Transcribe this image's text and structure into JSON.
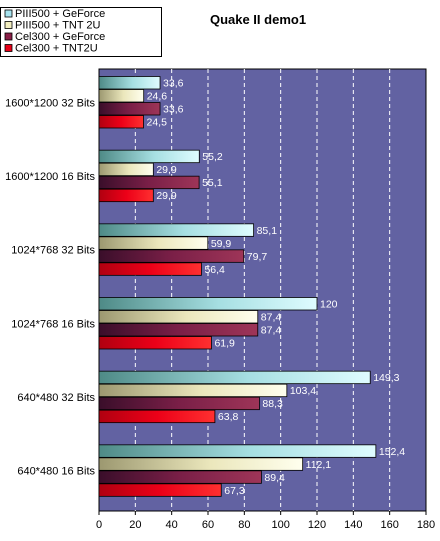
{
  "chart_data": {
    "type": "bar",
    "orientation": "horizontal",
    "title": "Quake II demo1",
    "xlabel": "",
    "ylabel": "",
    "xlim": [
      0,
      180
    ],
    "xticks": [
      0,
      20,
      40,
      60,
      80,
      100,
      120,
      140,
      160,
      180
    ],
    "categories": [
      "1600*1200 32 Bits",
      "1600*1200 16 Bits",
      "1024*768 32 Bits",
      "1024*768 16 Bits",
      "640*480 32 Bits",
      "640*480 16 Bits"
    ],
    "series": [
      {
        "name": "PIII500 + GeForce",
        "values": [
          33.6,
          55.2,
          85.1,
          120,
          149.3,
          152.4
        ],
        "labels": [
          "33,6",
          "55,2",
          "85,1",
          "120",
          "149,3",
          "152,4"
        ],
        "color": "#a8e4f0"
      },
      {
        "name": "PIII500 + TNT 2U",
        "values": [
          24.6,
          29.9,
          59.9,
          87.4,
          103.4,
          112.1
        ],
        "labels": [
          "24,6",
          "29,9",
          "59,9",
          "87,4",
          "103,4",
          "112,1"
        ],
        "color": "#f2eec0"
      },
      {
        "name": "Cel300 + GeForce",
        "values": [
          33.6,
          55.1,
          79.7,
          87.4,
          88.3,
          89.4
        ],
        "labels": [
          "33,6",
          "55,1",
          "79,7",
          "87,4",
          "88,3",
          "89,4"
        ],
        "color": "#8a2048"
      },
      {
        "name": "Cel300 + TNT2U",
        "values": [
          24.5,
          29.9,
          56.4,
          61.9,
          63.8,
          67.3
        ],
        "labels": [
          "24,5",
          "29,9",
          "56,4",
          "61,9",
          "63,8",
          "67,3"
        ],
        "color": "#e80018"
      }
    ],
    "grid": true,
    "legend_position": "top-left",
    "plot_background": "#6060a0"
  }
}
